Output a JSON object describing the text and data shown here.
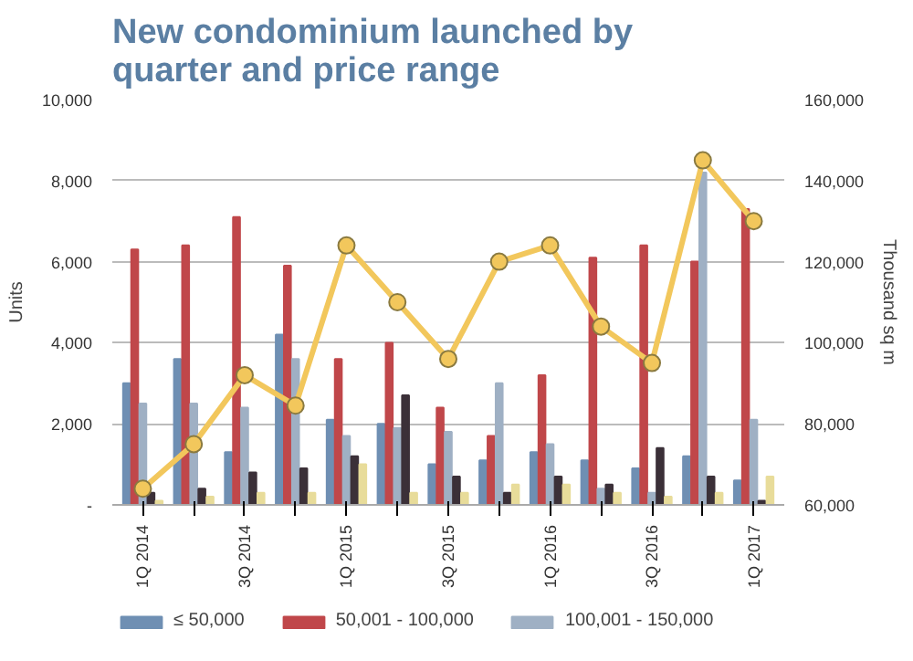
{
  "chart_data": {
    "type": "bar",
    "title": "New condominium launched by quarter and price range",
    "categories": [
      "1Q 2014",
      null,
      "3Q 2014",
      null,
      "1Q 2015",
      null,
      "3Q 2015",
      null,
      "1Q 2016",
      null,
      "3Q 2016",
      null,
      "1Q 2017"
    ],
    "ylabel": "Units",
    "y2label": "Thousand sq m",
    "ylim": [
      0,
      10000
    ],
    "yticks": [
      {
        "value": 0,
        "label": "-"
      },
      {
        "value": 2000,
        "label": "2,000"
      },
      {
        "value": 4000,
        "label": "4,000"
      },
      {
        "value": 6000,
        "label": "6,000"
      },
      {
        "value": 8000,
        "label": "8,000"
      },
      {
        "value": 10000,
        "label": "10,000"
      }
    ],
    "y2lim": [
      60000,
      160000
    ],
    "y2ticks": [
      {
        "value": 60000,
        "label": "60,000"
      },
      {
        "value": 80000,
        "label": "80,000"
      },
      {
        "value": 100000,
        "label": "100,000"
      },
      {
        "value": 120000,
        "label": "120,000"
      },
      {
        "value": 140000,
        "label": "140,000"
      },
      {
        "value": 160000,
        "label": "160,000"
      }
    ],
    "grid": "y",
    "legend": "bottom",
    "series": [
      {
        "name": "≤ 50,000",
        "color": "#6f8fb3",
        "values": [
          3000,
          3600,
          1300,
          4200,
          2100,
          2000,
          1000,
          1100,
          1300,
          1100,
          900,
          1200,
          600
        ]
      },
      {
        "name": "50,001 - 100,000",
        "color": "#c0474a",
        "values": [
          6300,
          6400,
          7100,
          5900,
          3600,
          4000,
          2400,
          1700,
          3200,
          6100,
          6400,
          6000,
          7300
        ]
      },
      {
        "name": "100,001 - 150,000",
        "color": "#9fb0c4",
        "values": [
          2500,
          2500,
          2400,
          3600,
          1700,
          1900,
          1800,
          3000,
          1500,
          400,
          300,
          8200,
          2100
        ]
      },
      {
        "color": "#3b3038",
        "values": [
          300,
          400,
          800,
          900,
          1200,
          2700,
          700,
          300,
          700,
          500,
          1400,
          700,
          100
        ]
      },
      {
        "color": "#e8dc9a",
        "values": [
          100,
          200,
          300,
          300,
          1000,
          300,
          300,
          500,
          500,
          300,
          200,
          300,
          700
        ]
      },
      {
        "type": "line",
        "axis": "y2",
        "color": "#f2c75c",
        "marker": "circle",
        "values": [
          64000,
          75000,
          92000,
          84500,
          124000,
          110000,
          96000,
          120000,
          124000,
          104000,
          95000,
          145000,
          130000
        ]
      }
    ]
  }
}
